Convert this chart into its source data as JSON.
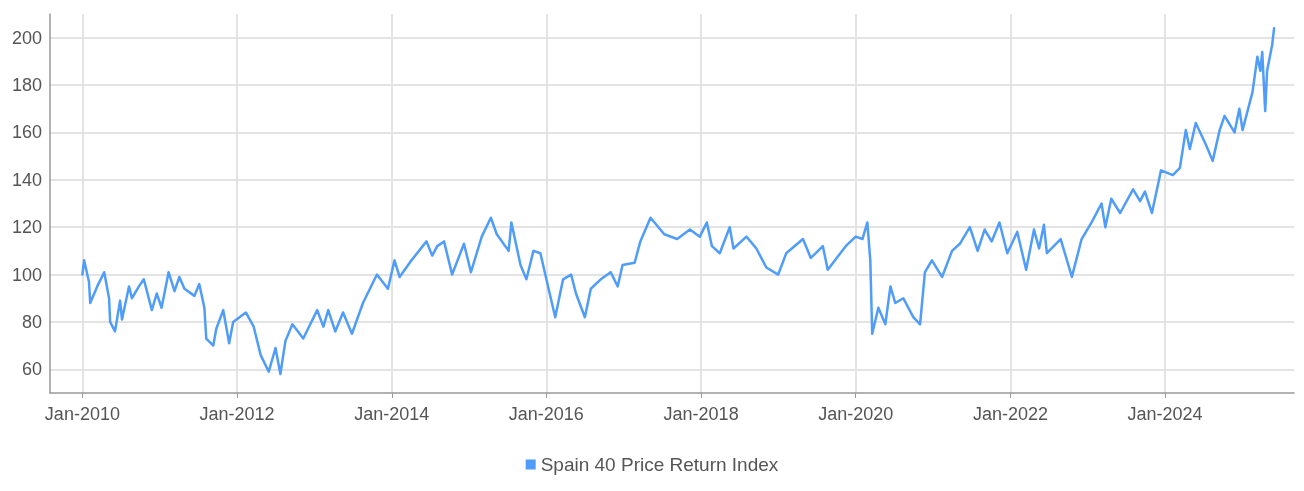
{
  "chart_data": {
    "type": "line",
    "xlim": [
      "2009-08",
      "2025-09"
    ],
    "ylim": [
      50,
      210
    ],
    "xticks": [
      {
        "value": "2010-01",
        "label": "Jan-2010"
      },
      {
        "value": "2012-01",
        "label": "Jan-2012"
      },
      {
        "value": "2014-01",
        "label": "Jan-2014"
      },
      {
        "value": "2016-01",
        "label": "Jan-2016"
      },
      {
        "value": "2018-01",
        "label": "Jan-2018"
      },
      {
        "value": "2020-01",
        "label": "Jan-2020"
      },
      {
        "value": "2022-01",
        "label": "Jan-2022"
      },
      {
        "value": "2024-01",
        "label": "Jan-2024"
      }
    ],
    "yticks": [
      60,
      80,
      100,
      120,
      140,
      160,
      180,
      200
    ],
    "grid": true,
    "legend": "bottom",
    "marker": "none",
    "line_style": "solid",
    "x": [
      "2010-01-01",
      "2010-01-09",
      "2010-02-01",
      "2010-02-07",
      "2010-03-12",
      "2010-04-14",
      "2010-05-07",
      "2010-05-12",
      "2010-06-04",
      "2010-06-28",
      "2010-07-07",
      "2010-08-09",
      "2010-08-23",
      "2010-09-25",
      "2010-10-18",
      "2010-11-25",
      "2010-12-18",
      "2011-01-10",
      "2011-02-12",
      "2011-03-12",
      "2011-04-04",
      "2011-04-28",
      "2011-06-14",
      "2011-07-07",
      "2011-07-31",
      "2011-08-09",
      "2011-09-11",
      "2011-09-25",
      "2011-10-28",
      "2011-11-25",
      "2011-12-14",
      "2012-02-12",
      "2012-03-20",
      "2012-04-22",
      "2012-05-30",
      "2012-07-01",
      "2012-07-24",
      "2012-08-17",
      "2012-09-19",
      "2012-11-09",
      "2013-01-14",
      "2013-02-12",
      "2013-03-07",
      "2013-04-09",
      "2013-05-16",
      "2013-06-27",
      "2013-08-18",
      "2013-10-23",
      "2013-12-14",
      "2014-01-14",
      "2014-02-07",
      "2014-04-04",
      "2014-06-14",
      "2014-07-11",
      "2014-08-04",
      "2014-09-05",
      "2014-10-13",
      "2014-12-08",
      "2015-01-10",
      "2015-03-02",
      "2015-04-14",
      "2015-05-12",
      "2015-07-07",
      "2015-07-20",
      "2015-09-01",
      "2015-09-29",
      "2015-11-01",
      "2015-12-04",
      "2015-12-27",
      "2016-02-12",
      "2016-03-20",
      "2016-04-27",
      "2016-05-20",
      "2016-07-01",
      "2016-07-29",
      "2016-09-14",
      "2016-10-31",
      "2016-12-03",
      "2016-12-26",
      "2017-02-21",
      "2017-03-20",
      "2017-05-07",
      "2017-07-11",
      "2017-09-10",
      "2017-11-09",
      "2017-12-26",
      "2018-01-28",
      "2018-02-21",
      "2018-03-30",
      "2018-05-16",
      "2018-06-03",
      "2018-08-03",
      "2018-09-19",
      "2018-11-05",
      "2018-12-31",
      "2019-02-07",
      "2019-04-27",
      "2019-06-03",
      "2019-07-30",
      "2019-08-22",
      "2019-11-15",
      "2020-01-01",
      "2020-02-02",
      "2020-02-25",
      "2020-03-10",
      "2020-03-19",
      "2020-04-17",
      "2020-05-20",
      "2020-06-13",
      "2020-07-06",
      "2020-08-13",
      "2020-09-29",
      "2020-10-31",
      "2020-11-23",
      "2020-12-26",
      "2021-02-12",
      "2021-03-31",
      "2021-05-07",
      "2021-06-23",
      "2021-07-30",
      "2021-09-01",
      "2021-10-04",
      "2021-11-10",
      "2021-12-17",
      "2022-02-02",
      "2022-03-16",
      "2022-04-22",
      "2022-05-16",
      "2022-06-08",
      "2022-06-22",
      "2022-08-26",
      "2022-10-18",
      "2022-12-03",
      "2023-01-19",
      "2023-03-07",
      "2023-03-25",
      "2023-04-22",
      "2023-06-03",
      "2023-08-03",
      "2023-09-05",
      "2023-09-28",
      "2023-10-31",
      "2023-12-13",
      "2024-02-07",
      "2024-03-11",
      "2024-04-08",
      "2024-04-27",
      "2024-05-25",
      "2024-07-11",
      "2024-08-13",
      "2024-09-15",
      "2024-10-08",
      "2024-11-24",
      "2024-12-17",
      "2025-01-01",
      "2025-02-17",
      "2025-03-12",
      "2025-03-26",
      "2025-04-04",
      "2025-04-18",
      "2025-04-27",
      "2025-05-21",
      "2025-05-30"
    ],
    "series": [
      {
        "name": "Spain 40 Price Return Index",
        "color": "#4f9cf9",
        "values": [
          100,
          106,
          97,
          88,
          95,
          101,
          90,
          80,
          76,
          89,
          81,
          95,
          90,
          95,
          98,
          85,
          92,
          86,
          101,
          93,
          99,
          94,
          91,
          96,
          86,
          73,
          70,
          77,
          85,
          71,
          80,
          84,
          78,
          66,
          59,
          69,
          58,
          72,
          79,
          73,
          85,
          78,
          85,
          76,
          84,
          75,
          88,
          100,
          94,
          106,
          99,
          106,
          114,
          108,
          112,
          114,
          100,
          113,
          101,
          116,
          124,
          117,
          110,
          122,
          104,
          98,
          110,
          109,
          100,
          82,
          98,
          100,
          92,
          82,
          94,
          98,
          101,
          95,
          104,
          105,
          114,
          124,
          117,
          115,
          119,
          116,
          122,
          112,
          109,
          120,
          111,
          116,
          111,
          103,
          100,
          109,
          115,
          107,
          112,
          102,
          112,
          116,
          115,
          122,
          106,
          75,
          86,
          79,
          95,
          88,
          90,
          82,
          79,
          101,
          106,
          99,
          110,
          113,
          120,
          110,
          119,
          114,
          122,
          109,
          118,
          102,
          119,
          111,
          121,
          109,
          115,
          99,
          115,
          122,
          130,
          120,
          132,
          126,
          136,
          131,
          135,
          126,
          144,
          142,
          145,
          161,
          153,
          164,
          155,
          148,
          161,
          167,
          160,
          170,
          161,
          177,
          192,
          186,
          194,
          169,
          186,
          197,
          204
        ]
      }
    ]
  }
}
